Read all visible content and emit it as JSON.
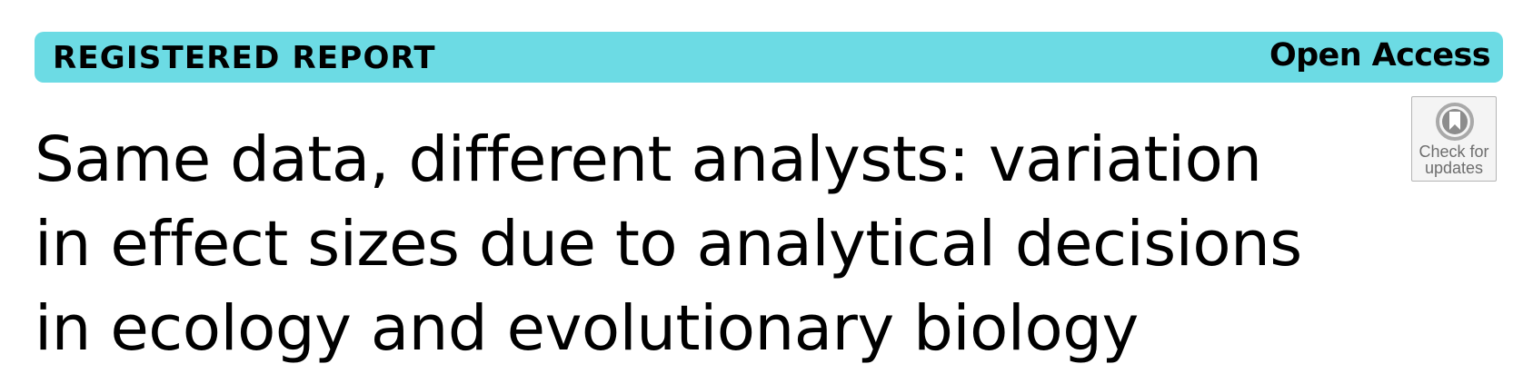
{
  "header": {
    "article_type": "REGISTERED REPORT",
    "access": "Open Access",
    "banner_color": "#6cdbe4"
  },
  "title": {
    "lines": [
      "Same data, different analysts: variation",
      "in effect sizes due to analytical decisions",
      "in ecology and evolutionary biology"
    ]
  },
  "check_for_updates": {
    "icon": "bookmark-circle-icon",
    "line1": "Check for",
    "line2": "updates"
  }
}
